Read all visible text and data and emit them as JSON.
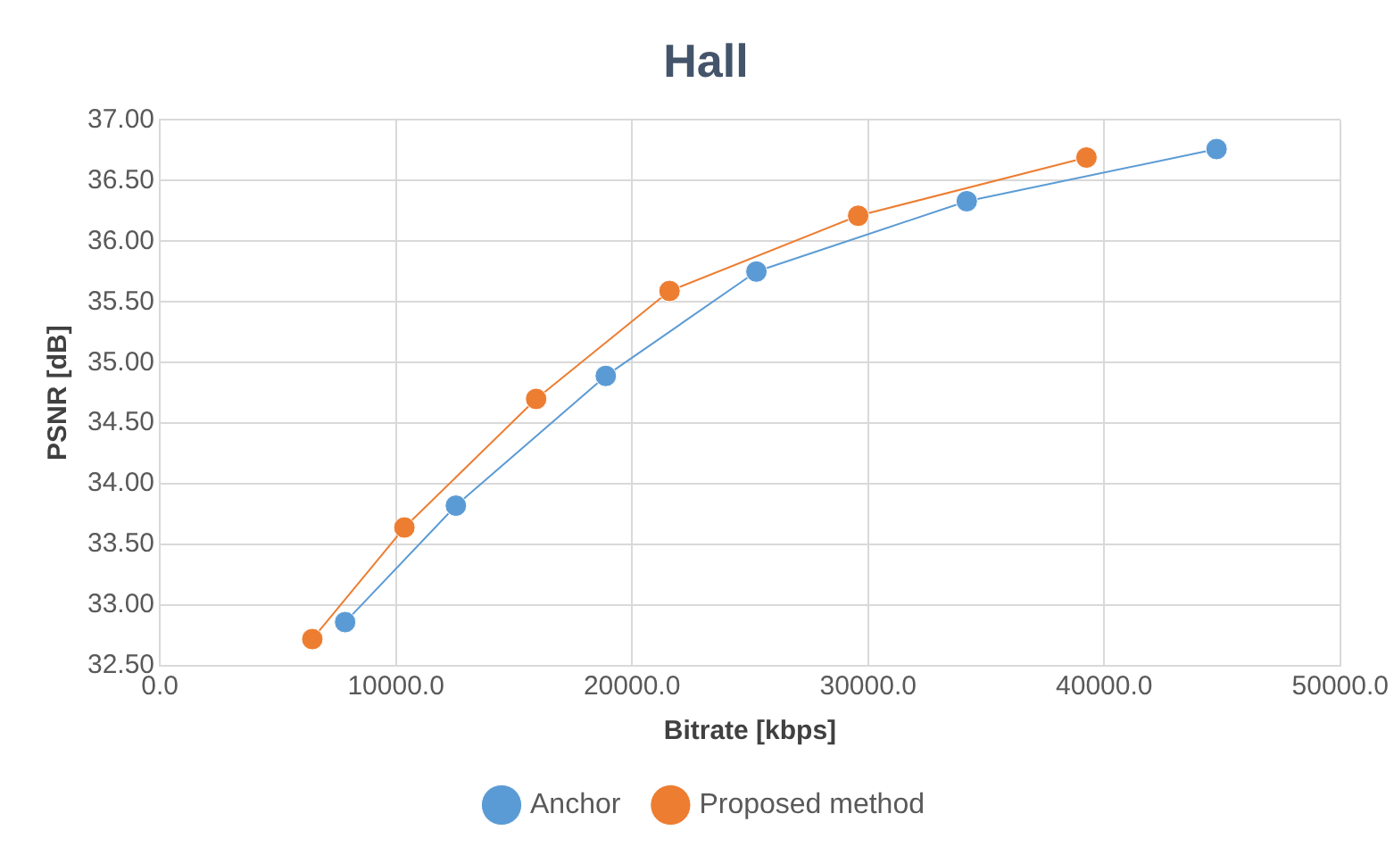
{
  "chart_data": {
    "type": "line",
    "title": "Hall",
    "xlabel": "Bitrate [kbps]",
    "ylabel": "PSNR [dB]",
    "xlim": [
      0,
      50000
    ],
    "xticks": [
      {
        "value": 0,
        "label": "0.0"
      },
      {
        "value": 10000,
        "label": "10000.0"
      },
      {
        "value": 20000,
        "label": "20000.0"
      },
      {
        "value": 30000,
        "label": "30000.0"
      },
      {
        "value": 40000,
        "label": "40000.0"
      },
      {
        "value": 50000,
        "label": "50000.0"
      }
    ],
    "ylim": [
      32.5,
      37
    ],
    "yticks": [
      {
        "value": 32.5,
        "label": "32.50"
      },
      {
        "value": 33,
        "label": "33.00"
      },
      {
        "value": 33.5,
        "label": "33.50"
      },
      {
        "value": 34,
        "label": "34.00"
      },
      {
        "value": 34.5,
        "label": "34.50"
      },
      {
        "value": 35,
        "label": "35.00"
      },
      {
        "value": 35.5,
        "label": "35.50"
      },
      {
        "value": 36,
        "label": "36.00"
      },
      {
        "value": 36.5,
        "label": "36.50"
      },
      {
        "value": 37,
        "label": "37.00"
      }
    ],
    "grid": true,
    "legend": "bottom",
    "marker": "circle",
    "line_style": "solid",
    "series": [
      {
        "name": "Anchor",
        "color": "#5b9bd5",
        "x": [
          7850,
          12540,
          18890,
          25270,
          34180,
          44760
        ],
        "values": [
          32.86,
          33.82,
          34.89,
          35.75,
          36.33,
          36.76
        ]
      },
      {
        "name": "Proposed method",
        "color": "#ed7d31",
        "x": [
          6460,
          10360,
          15940,
          21590,
          29580,
          39250
        ],
        "values": [
          32.72,
          33.64,
          34.7,
          35.59,
          36.21,
          36.69
        ]
      }
    ]
  }
}
